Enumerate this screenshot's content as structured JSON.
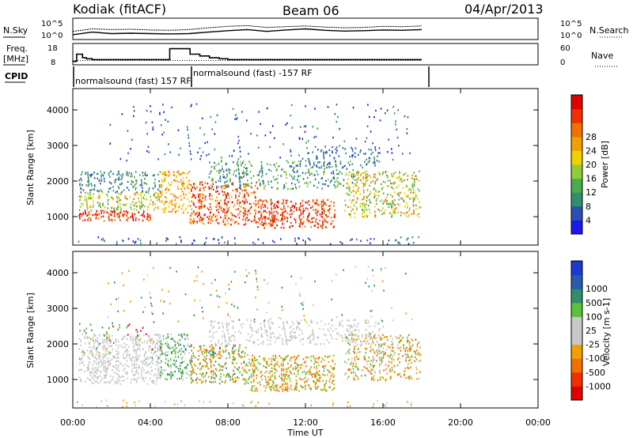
{
  "header": {
    "station": "Kodiak (fitACF)",
    "beam": "Beam 06",
    "date": "04/Apr/2013"
  },
  "side_labels": {
    "nsky": "N.Sky",
    "nsearch": "N.Search",
    "freq_line1": "Freq.",
    "freq_line2": "[MHz]",
    "nave": "Nave",
    "cpid": "CPID"
  },
  "cpid_labels": [
    "normalsound (fast) 157 RF",
    "normalsound (fast) -157 RF"
  ],
  "colors": {
    "power": [
      "#1a1af0",
      "#2a50b8",
      "#2f8f6a",
      "#4daa4d",
      "#8fcc3a",
      "#f0d000",
      "#f0a000",
      "#f07000",
      "#f03000",
      "#e00000"
    ],
    "velocity": [
      "#1a3ad0",
      "#2a5ab0",
      "#2f8f6a",
      "#5cc03a",
      "#c8c8c8",
      "#c8c8c8",
      "#f0a000",
      "#f07000",
      "#f03000",
      "#e00000"
    ]
  },
  "chart_data": [
    {
      "type": "line",
      "name": "noise panel",
      "ylabel_left": "N.Sky",
      "ylabel_right": "N.Search",
      "yticks": [
        "10^5",
        "10^0"
      ],
      "x": [
        0,
        1,
        2,
        3,
        4,
        5,
        6,
        7,
        8,
        9,
        10,
        11,
        12,
        13,
        14,
        15,
        16,
        17,
        18
      ],
      "series": [
        {
          "values": [
            0.9,
            1.6,
            1.2,
            1.3,
            1.2,
            1.1,
            1.2,
            1.6,
            2.0,
            2.3,
            1.8,
            2.2,
            2.5,
            2.1,
            1.9,
            2.0,
            2.2,
            2.1,
            2.3
          ]
        },
        {
          "values": [
            1.8,
            2.5,
            2.3,
            2.4,
            2.2,
            2.1,
            2.3,
            2.8,
            3.2,
            3.4,
            2.9,
            3.1,
            3.3,
            3.0,
            2.8,
            2.9,
            3.2,
            3.1,
            3.3
          ]
        }
      ]
    },
    {
      "type": "line",
      "name": "frequency panel",
      "ylabel": "Freq. [MHz]",
      "ylim": [
        8,
        18
      ],
      "yticks_left": [
        18,
        8
      ],
      "yticks_right": [
        60,
        0
      ],
      "ylabel_right": "Nave",
      "x": [
        0,
        0.2,
        0.5,
        0.7,
        1.0,
        2.0,
        3.0,
        4.0,
        5.0,
        5.05,
        6.0,
        6.05,
        6.5,
        6.55,
        7.0,
        7.05,
        7.5,
        7.55,
        8.0,
        18.0
      ],
      "series": [
        {
          "values": [
            9,
            13,
            11,
            10.5,
            10,
            10,
            10,
            10,
            16,
            16,
            16,
            13,
            13,
            12,
            12,
            11,
            11,
            10.5,
            10,
            10
          ]
        }
      ],
      "nave_level": 9.5
    },
    {
      "type": "heatmap",
      "name": "power",
      "ylabel": "Slant Range [km]",
      "ylim": [
        200,
        4600
      ],
      "yticks": [
        1000,
        2000,
        3000,
        4000
      ],
      "colorbar_label": "Power [dB]",
      "colorbar_ticks": [
        4,
        8,
        12,
        16,
        20,
        24,
        28
      ]
    },
    {
      "type": "heatmap",
      "name": "velocity",
      "ylabel": "Slant Range [km]",
      "ylim": [
        200,
        4600
      ],
      "yticks": [
        1000,
        2000,
        3000,
        4000
      ],
      "colorbar_label": "Velocity [m s-1]",
      "colorbar_ticks": [
        1000,
        500,
        100,
        25,
        -25,
        -100,
        -500,
        -1000
      ],
      "xlabel": "Time UT",
      "xlim": [
        0,
        24
      ],
      "xticks": [
        "00:00",
        "04:00",
        "08:00",
        "12:00",
        "16:00",
        "20:00",
        "00:00"
      ]
    }
  ]
}
